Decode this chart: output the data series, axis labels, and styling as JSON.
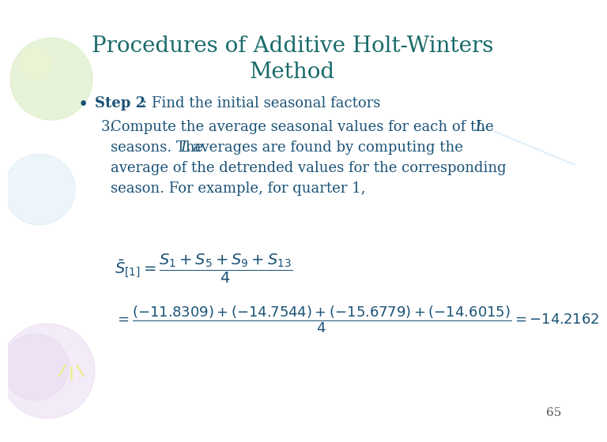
{
  "title_line1": "Procedures of Additive Holt-Winters",
  "title_line2": "Method",
  "title_color": "#1a6b6b",
  "title_fontsize": 20,
  "bg_color": "#ffffff",
  "text_color": "#1a5276",
  "step2_bold": "Step 2",
  "step2_rest": ": Find the initial seasonal factors",
  "body_fontsize": 13,
  "page_number": "65",
  "formula1": "$\\bar{S}_{[1]} = \\dfrac{S_1 + S_5 + S_9 + S_{13}}{4}$",
  "formula2": "$= \\dfrac{(-11.8309) + (-14.7544) + (-15.6779) + (-14.6015)}{4} = -14.2162$"
}
